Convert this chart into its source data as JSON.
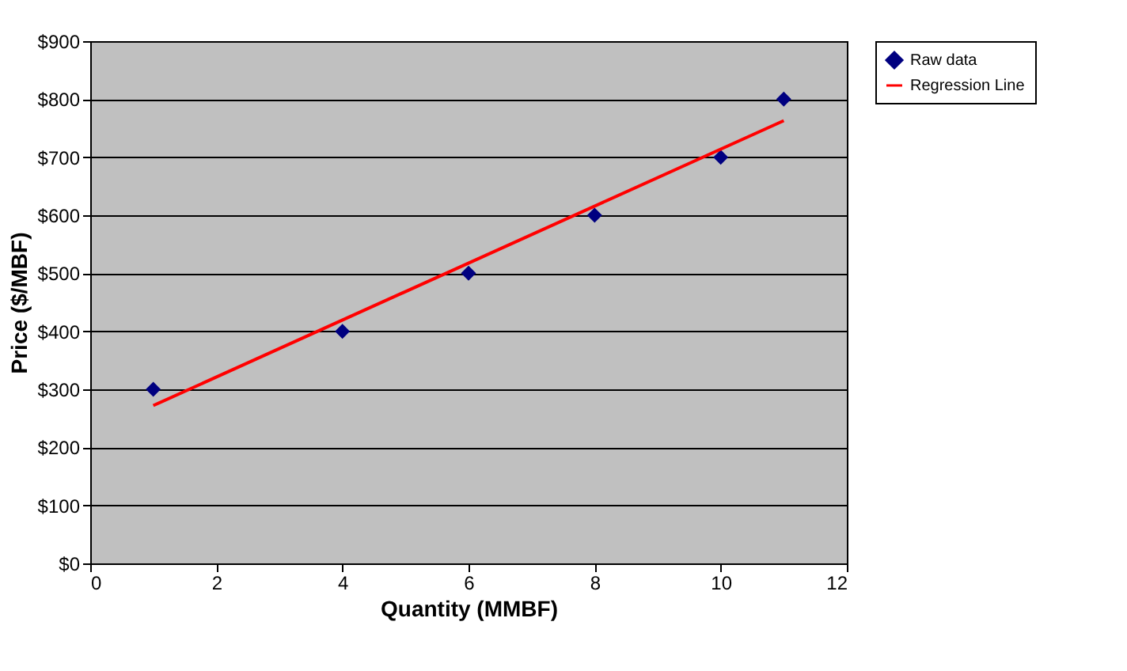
{
  "chart_data": {
    "type": "scatter",
    "xlabel": "Quantity (MMBF)",
    "ylabel": "Price ($/MBF)",
    "series": [
      {
        "name": "Raw data",
        "color": "#000080",
        "marker": "diamond",
        "x": [
          1,
          4,
          6,
          8,
          10,
          11
        ],
        "values": [
          300,
          400,
          500,
          600,
          700,
          800
        ]
      },
      {
        "name": "Regression Line",
        "type": "line",
        "color": "#ff0000",
        "x": [
          1,
          11
        ],
        "values": [
          272,
          763
        ]
      }
    ],
    "xlim": [
      0,
      12
    ],
    "xticks": [
      0,
      2,
      4,
      6,
      8,
      10,
      12
    ],
    "ylim": [
      0,
      900
    ],
    "yticks": [
      {
        "value": 0,
        "label": "$0"
      },
      {
        "value": 100,
        "label": "$100"
      },
      {
        "value": 200,
        "label": "$200"
      },
      {
        "value": 300,
        "label": "$300"
      },
      {
        "value": 400,
        "label": "$400"
      },
      {
        "value": 500,
        "label": "$500"
      },
      {
        "value": 600,
        "label": "$600"
      },
      {
        "value": 700,
        "label": "$700"
      },
      {
        "value": 800,
        "label": "$800"
      },
      {
        "value": 900,
        "label": "$900"
      }
    ],
    "grid": "y",
    "legend": "right"
  }
}
